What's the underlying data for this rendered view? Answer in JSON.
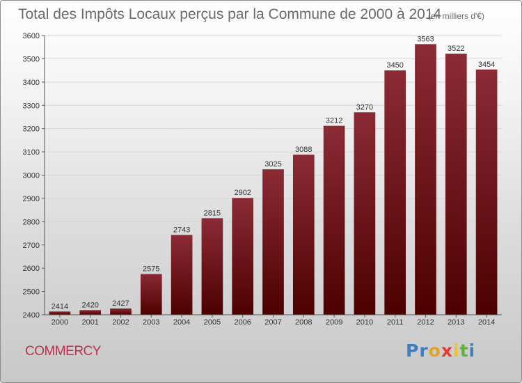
{
  "chart_data": {
    "type": "bar",
    "title": "Total des Impôts Locaux perçus par la Commune de 2000 à 2014",
    "title_unit": "(en milliers d'€)",
    "categories": [
      "2000",
      "2001",
      "2002",
      "2003",
      "2004",
      "2005",
      "2006",
      "2007",
      "2008",
      "2009",
      "2010",
      "2011",
      "2012",
      "2013",
      "2014"
    ],
    "values": [
      2414,
      2420,
      2427,
      2575,
      2743,
      2815,
      2902,
      3025,
      3088,
      3212,
      3270,
      3450,
      3563,
      3522,
      3454
    ],
    "ylim": [
      2400,
      3600
    ],
    "yticks": [
      2400,
      2500,
      2600,
      2700,
      2800,
      2900,
      3000,
      3100,
      3200,
      3300,
      3400,
      3500,
      3600
    ],
    "grid": true,
    "bar_color_top": "#8b2b35",
    "bar_color_bottom": "#4d0000",
    "xlabel": "",
    "ylabel": ""
  },
  "commune_name": "COMMERCY",
  "logo": {
    "letters": [
      "P",
      "r",
      "o",
      "x",
      "i",
      "t",
      "i"
    ],
    "colors": [
      "#3b7fc4",
      "#3b7fc4",
      "#e8a020",
      "#e33b2e",
      "#f0c419",
      "#5cb533",
      "#3b7fc4"
    ]
  }
}
